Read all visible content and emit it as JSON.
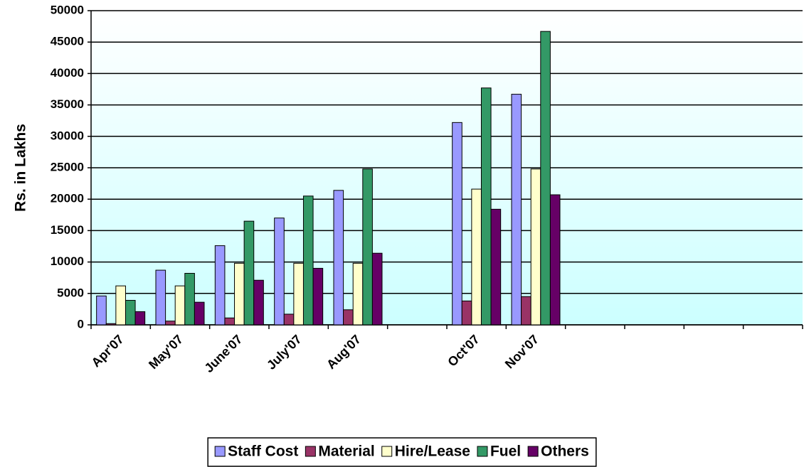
{
  "chart_data": {
    "type": "bar",
    "y_label": "Rs. in Lakhs",
    "categories": [
      "Apr'07",
      "May'07",
      "June'07",
      "July'07",
      "Aug'07",
      null,
      "Oct'07",
      "Nov'07",
      null,
      null,
      null,
      null
    ],
    "series": [
      {
        "name": "Staff Cost",
        "color": "#9999ff",
        "values": [
          4600,
          8700,
          12600,
          17000,
          21400,
          null,
          32200,
          36700,
          null,
          null,
          null,
          null
        ]
      },
      {
        "name": "Material",
        "color": "#993366",
        "values": [
          200,
          600,
          1100,
          1700,
          2400,
          null,
          3800,
          4500,
          null,
          null,
          null,
          null
        ]
      },
      {
        "name": "Hire/Lease",
        "color": "#ffffcc",
        "values": [
          6200,
          6200,
          9800,
          9800,
          9800,
          null,
          21600,
          24800,
          null,
          null,
          null,
          null
        ]
      },
      {
        "name": "Fuel",
        "color": "#339966",
        "values": [
          3900,
          8200,
          16500,
          20500,
          24800,
          null,
          37700,
          46700,
          null,
          null,
          null,
          null
        ]
      },
      {
        "name": "Others",
        "color": "#660066",
        "values": [
          2100,
          3600,
          7100,
          9000,
          11400,
          null,
          18400,
          20700,
          null,
          null,
          null,
          null
        ]
      }
    ],
    "ylim": [
      0,
      50000
    ],
    "yticks": [
      0,
      5000,
      10000,
      15000,
      20000,
      25000,
      30000,
      35000,
      40000,
      45000,
      50000
    ],
    "grid": true,
    "legend": "bottom"
  }
}
